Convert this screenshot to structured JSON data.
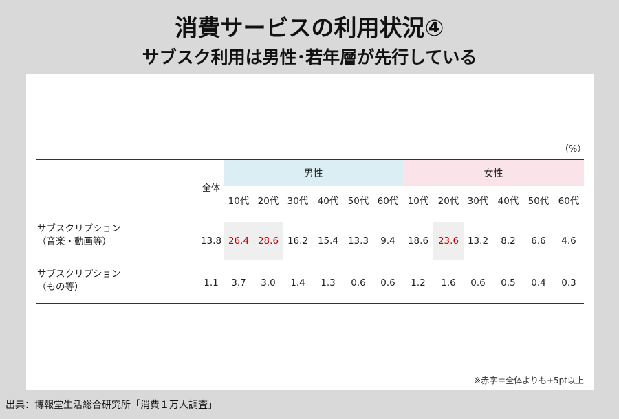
{
  "title": "消費サービスの利用状況④",
  "subtitle": "サブスク利用は男性･若年層が先行している",
  "unit": "（%）",
  "groups": {
    "male": "男性",
    "female": "女性"
  },
  "total_label": "全体",
  "age_labels": [
    "10代",
    "20代",
    "30代",
    "40代",
    "50代",
    "60代"
  ],
  "rows": [
    {
      "label_line1": "サブスクリプション",
      "label_line2": "（音楽・動画等）",
      "values": [
        "13.8",
        "26.4",
        "28.6",
        "16.2",
        "15.4",
        "13.3",
        "9.4",
        "18.6",
        "23.6",
        "13.2",
        "8.2",
        "6.6",
        "4.6"
      ],
      "red": [
        false,
        true,
        true,
        false,
        false,
        false,
        false,
        false,
        true,
        false,
        false,
        false,
        false
      ]
    },
    {
      "label_line1": "サブスクリプション",
      "label_line2": "（もの等）",
      "values": [
        "1.1",
        "3.7",
        "3.0",
        "1.4",
        "1.3",
        "0.6",
        "0.6",
        "1.2",
        "1.6",
        "0.6",
        "0.5",
        "0.4",
        "0.3"
      ],
      "red": [
        false,
        false,
        false,
        false,
        false,
        false,
        false,
        false,
        false,
        false,
        false,
        false,
        false
      ]
    }
  ],
  "note": "※赤字＝全体よりも+5pt以上",
  "source": "出典：博報堂生活総合研究所「消費１万人調査」",
  "colors": {
    "red": "#c00000",
    "male_band": "#daeef3",
    "female_band": "#fbe4e9",
    "highlight": "#efefef"
  }
}
